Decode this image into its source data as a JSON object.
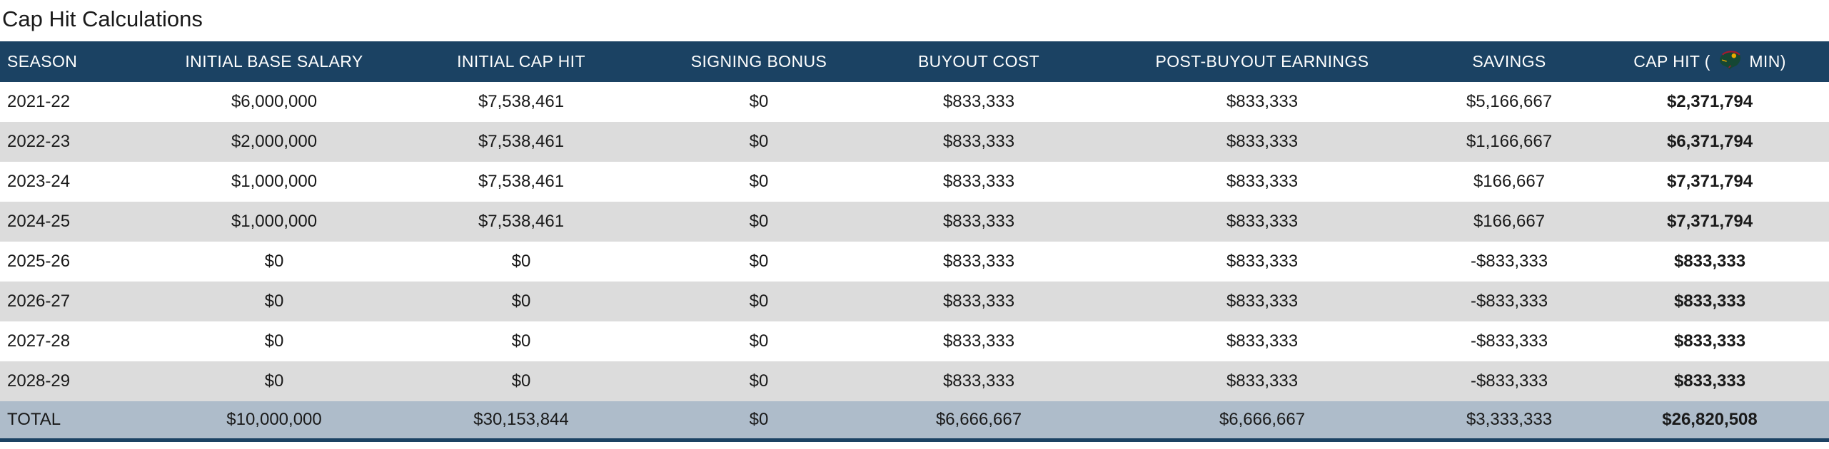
{
  "title": "Cap Hit Calculations",
  "colors": {
    "header_bg": "#1b4263",
    "header_text": "#ffffff",
    "row_bg": "#ffffff",
    "row_alt_bg": "#dcdcdc",
    "total_row_bg": "#aebcca",
    "bottom_border": "#1b4263",
    "body_text": "#1a1a1a",
    "logo_green": "#154734",
    "logo_red": "#a6192e",
    "logo_wheat": "#eaaa00"
  },
  "table": {
    "columns": [
      {
        "id": "season",
        "label": "SEASON"
      },
      {
        "id": "initial-base-salary",
        "label": "INITIAL BASE SALARY"
      },
      {
        "id": "initial-cap-hit",
        "label": "INITIAL CAP HIT"
      },
      {
        "id": "signing-bonus",
        "label": "SIGNING BONUS"
      },
      {
        "id": "buyout-cost",
        "label": "BUYOUT COST"
      },
      {
        "id": "post-buyout-earnings",
        "label": "POST-BUYOUT EARNINGS"
      },
      {
        "id": "savings",
        "label": "SAVINGS"
      },
      {
        "id": "cap-hit-min",
        "label_before_icon": "CAP HIT (",
        "label_after_icon": " MIN)",
        "icon": "minnesota-wild-logo-icon"
      }
    ],
    "rows": [
      [
        "2021-22",
        "$6,000,000",
        "$7,538,461",
        "$0",
        "$833,333",
        "$833,333",
        "$5,166,667",
        "$2,371,794"
      ],
      [
        "2022-23",
        "$2,000,000",
        "$7,538,461",
        "$0",
        "$833,333",
        "$833,333",
        "$1,166,667",
        "$6,371,794"
      ],
      [
        "2023-24",
        "$1,000,000",
        "$7,538,461",
        "$0",
        "$833,333",
        "$833,333",
        "$166,667",
        "$7,371,794"
      ],
      [
        "2024-25",
        "$1,000,000",
        "$7,538,461",
        "$0",
        "$833,333",
        "$833,333",
        "$166,667",
        "$7,371,794"
      ],
      [
        "2025-26",
        "$0",
        "$0",
        "$0",
        "$833,333",
        "$833,333",
        "-$833,333",
        "$833,333"
      ],
      [
        "2026-27",
        "$0",
        "$0",
        "$0",
        "$833,333",
        "$833,333",
        "-$833,333",
        "$833,333"
      ],
      [
        "2027-28",
        "$0",
        "$0",
        "$0",
        "$833,333",
        "$833,333",
        "-$833,333",
        "$833,333"
      ],
      [
        "2028-29",
        "$0",
        "$0",
        "$0",
        "$833,333",
        "$833,333",
        "-$833,333",
        "$833,333"
      ]
    ],
    "total_row": [
      "TOTAL",
      "$10,000,000",
      "$30,153,844",
      "$0",
      "$6,666,667",
      "$6,666,667",
      "$3,333,333",
      "$26,820,508"
    ]
  }
}
